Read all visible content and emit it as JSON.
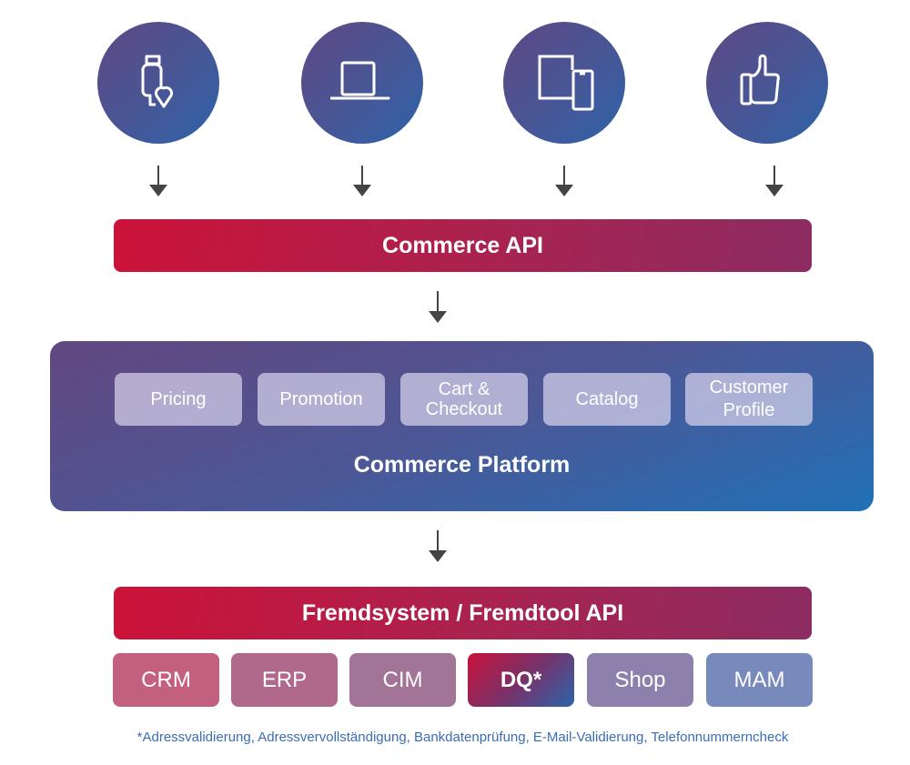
{
  "channels": [
    {
      "icon": "smartwatch-heart-icon"
    },
    {
      "icon": "laptop-icon"
    },
    {
      "icon": "tablet-phone-icon"
    },
    {
      "icon": "thumbs-up-icon"
    }
  ],
  "commerce_api": {
    "label": "Commerce API"
  },
  "platform": {
    "label": "Commerce Platform",
    "modules": [
      "Pricing",
      "Promotion",
      "Cart & Checkout",
      "Catalog",
      "Customer Profile"
    ]
  },
  "external_api": {
    "label": "Fremdsystem / Fremdtool API"
  },
  "systems": [
    {
      "label": "CRM",
      "color": "#c3607f"
    },
    {
      "label": "ERP",
      "color": "#b0698c"
    },
    {
      "label": "CIM",
      "color": "#a27498"
    },
    {
      "label": "DQ*",
      "color": "gradient"
    },
    {
      "label": "Shop",
      "color": "#8d80ac"
    },
    {
      "label": "MAM",
      "color": "#7889bb"
    }
  ],
  "footnote": "*Adressvalidierung, Adressvervollständigung, Bankdatenprüfung, E-Mail-Validierung, Telefonnummerncheck",
  "colors": {
    "red": "#cc1238",
    "purple": "#5e4884",
    "blue": "#2170b6",
    "footnote": "#3a6db4"
  }
}
